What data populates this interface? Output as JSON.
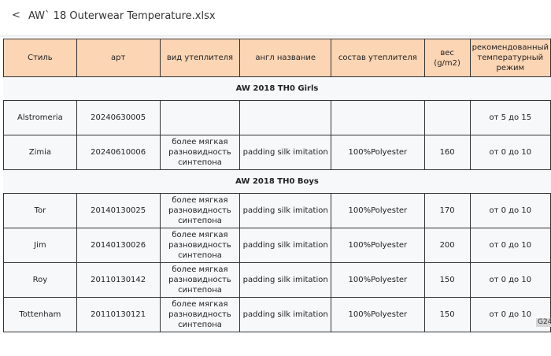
{
  "header": {
    "back_icon": "chevron-left-icon",
    "back": "<",
    "title": "AW` 18 Outerwear Temperature.xlsx"
  },
  "table": {
    "columns": [
      "Стиль",
      "арт",
      "вид утеплителя",
      "англ название",
      "состав утеплителя",
      "вес (g/m2)",
      "рекомендованный температурный режим"
    ],
    "groups": [
      {
        "title": "AW 2018 TH0 Girls",
        "rows": [
          [
            "Alstromeria",
            "20240630005",
            "",
            "",
            "",
            "",
            "от 5 до 15"
          ],
          [
            "Zimia",
            "20240610006",
            "более мягкая разновидность синтепона",
            "padding silk imitation",
            "100%Polyester",
            "160",
            "от 0 до 10"
          ]
        ]
      },
      {
        "title": "AW 2018 TH0 Boys",
        "rows": [
          [
            "Tor",
            "20140130025",
            "более мягкая разновидность синтепона",
            "padding silk imitation",
            "100%Polyester",
            "170",
            "от 0 до 10"
          ],
          [
            "Jim",
            "20140130026",
            "более мягкая разновидность синтепона",
            "padding silk imitation",
            "100%Polyester",
            "200",
            "от 0 до 10"
          ],
          [
            "Roy",
            "20110130142",
            "более мягкая разновидность синтепона",
            "padding silk imitation",
            "100%Polyester",
            "150",
            "от 0 до 10"
          ],
          [
            "Tottenham",
            "20110130121",
            "более мягкая разновидность синтепона",
            "padding silk imitation",
            "100%Polyester",
            "150",
            "от 0 до 10"
          ]
        ]
      }
    ]
  },
  "cell_tag": "G24",
  "colors": {
    "header_bg": "#fbd5b4",
    "cell_bg": "#f7f8fa"
  }
}
